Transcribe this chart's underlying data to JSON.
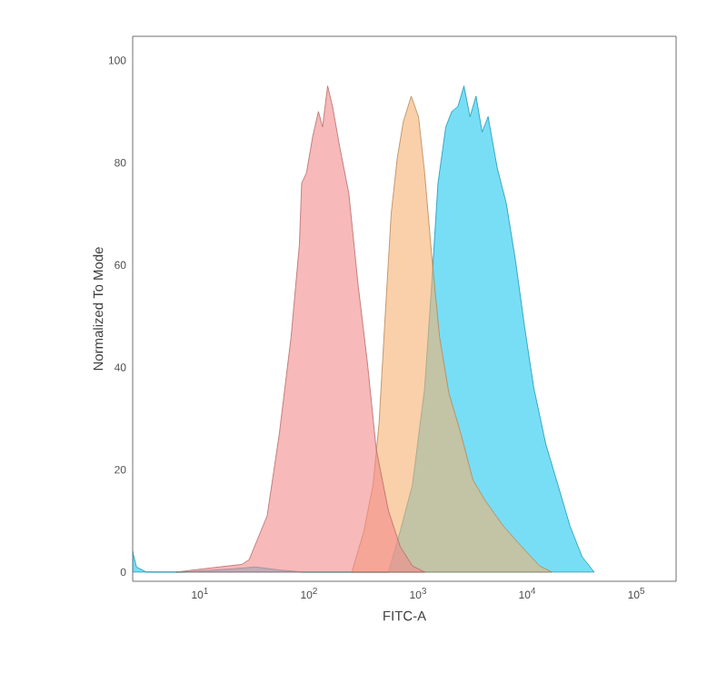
{
  "chart_data": {
    "type": "area",
    "xlabel": "FITC-A",
    "ylabel": "Normalized To Mode",
    "log": "x",
    "grid": false,
    "xlim": [
      2.4,
      230000
    ],
    "ylim": [
      -1.8,
      104.7
    ],
    "xticks": [
      {
        "value": 10,
        "label": "10$^{1}$"
      },
      {
        "value": 100,
        "label": "10$^{2}$"
      },
      {
        "value": 1000,
        "label": "10$^{3}$"
      },
      {
        "value": 10000,
        "label": "10$^{4}$"
      },
      {
        "value": 100000,
        "label": "10$^{5}$"
      }
    ],
    "yticks": [
      0,
      20,
      40,
      60,
      80,
      100
    ],
    "series": [
      {
        "color": "#1ec8f0",
        "x": [
          2.4,
          2.6,
          3.2,
          6.8,
          19,
          32,
          53,
          88,
          530,
          680,
          880,
          1140,
          1320,
          1510,
          1780,
          2020,
          2300,
          2610,
          2970,
          3370,
          3830,
          4350,
          5270,
          6390,
          7740,
          9380,
          11400,
          14700,
          19000,
          24500,
          31600,
          40800
        ],
        "values": [
          4,
          1,
          0,
          0,
          0.6,
          1,
          0.4,
          0,
          0,
          8,
          17,
          36,
          56,
          76,
          87,
          90,
          91,
          95,
          89,
          93,
          86,
          89,
          79,
          72,
          61,
          48,
          36,
          25,
          17,
          9,
          3,
          0
        ]
      },
      {
        "color": "#f5b070",
        "x": [
          245,
          316,
          383,
          435,
          495,
          562,
          640,
          726,
          858,
          1000,
          1140,
          1320,
          1560,
          1900,
          2450,
          3160,
          4080,
          6000,
          8800,
          12900,
          16700
        ],
        "values": [
          0,
          8,
          17,
          29,
          50,
          70,
          81,
          88,
          93,
          89,
          78,
          62,
          46,
          35,
          27,
          18,
          14,
          9,
          5,
          1.2,
          0
        ]
      },
      {
        "color": "#f28b8b",
        "x": [
          6,
          15,
          24,
          28,
          41,
          53,
          68,
          81,
          85,
          94,
          107,
          121,
          132,
          147,
          163,
          190,
          230,
          280,
          340,
          410,
          530,
          680,
          880,
          1140
        ],
        "values": [
          0,
          1,
          1.5,
          2.4,
          11,
          27,
          46,
          64,
          76,
          78,
          85,
          90,
          87,
          95,
          91,
          83,
          74,
          56,
          41,
          24,
          12,
          5,
          1.2,
          0
        ]
      }
    ]
  }
}
